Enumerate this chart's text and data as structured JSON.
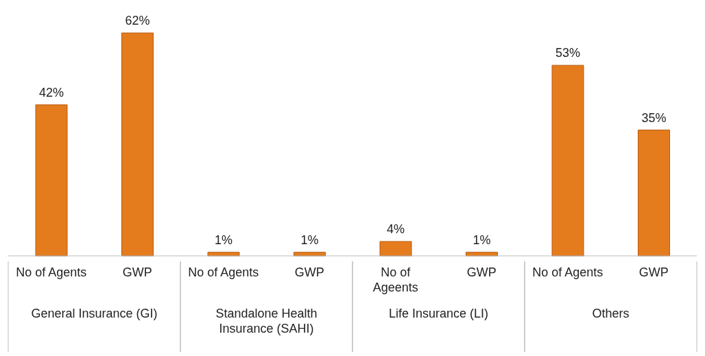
{
  "chart_data": {
    "type": "bar",
    "categories": [
      "No of Agents",
      "GWP",
      "No of Agents",
      "GWP",
      "No of Ageents",
      "GWP",
      "No of Agents",
      "GWP"
    ],
    "values": [
      42,
      62,
      1,
      1,
      4,
      1,
      53,
      35
    ],
    "value_labels": [
      "42%",
      "62%",
      "1%",
      "1%",
      "4%",
      "1%",
      "53%",
      "35%"
    ],
    "color": "#e47c1e",
    "annotations": [
      "General Insurance (GI)",
      "Standalone Health Insurance (SAHI)",
      "Life Insurance (LI)",
      "Others"
    ]
  }
}
